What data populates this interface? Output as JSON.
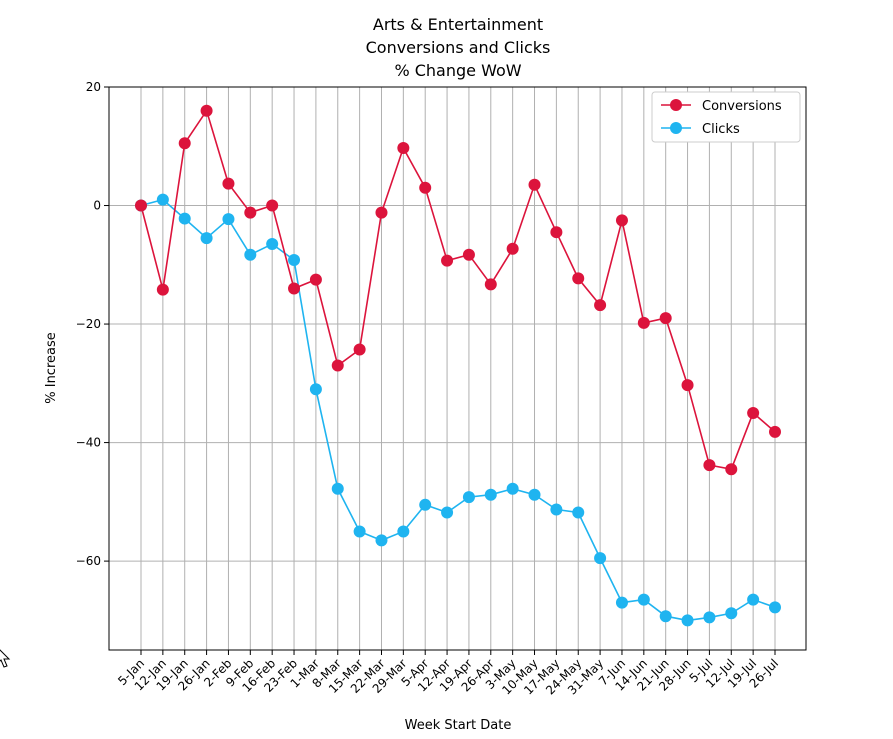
{
  "chart_data": {
    "type": "line",
    "title_lines": [
      "Arts & Entertainment",
      "Conversions and Clicks",
      "% Change WoW"
    ],
    "xlabel": "Week Start Date",
    "ylabel": "% Increase",
    "ylim": [
      -75,
      20
    ],
    "yticks": [
      20,
      0,
      -20,
      -40,
      -60
    ],
    "ytick_labels": [
      "20",
      "0",
      "−20",
      "−40",
      "−60"
    ],
    "grid": true,
    "legend_position": "top-right",
    "categories": [
      "5-Jan",
      "12-Jan",
      "19-Jan",
      "26-Jan",
      "2-Feb",
      "9-Feb",
      "16-Feb",
      "23-Feb",
      "1-Mar",
      "8-Mar",
      "15-Mar",
      "22-Mar",
      "29-Mar",
      "5-Apr",
      "12-Apr",
      "19-Apr",
      "26-Apr",
      "3-May",
      "10-May",
      "17-May",
      "24-May",
      "31-May",
      "7-Jun",
      "14-Jun",
      "21-Jun",
      "28-Jun",
      "5-Jul",
      "12-Jul",
      "19-Jul",
      "26-Jul"
    ],
    "series": [
      {
        "name": "Conversions",
        "color": "#dc143c",
        "values": [
          0,
          -14.2,
          10.5,
          16,
          3.7,
          -1.2,
          0,
          -14,
          -12.5,
          -27,
          -24.3,
          -1.2,
          9.7,
          3,
          -9.3,
          -8.3,
          -13.3,
          -7.3,
          3.5,
          -4.5,
          -12.3,
          -16.8,
          -2.5,
          -19.8,
          -19,
          -30.3,
          -43.8,
          -44.5,
          -35,
          -38.2
        ]
      },
      {
        "name": "Clicks",
        "color": "#1fb4f0",
        "values": [
          0,
          1,
          -2.2,
          -5.5,
          -2.3,
          -8.3,
          -6.5,
          -9.2,
          -31,
          -47.8,
          -55,
          -56.5,
          -55,
          -50.5,
          -51.8,
          -49.2,
          -48.8,
          -47.8,
          -48.8,
          -51.3,
          -51.8,
          -59.5,
          -67,
          -66.5,
          -69.3,
          -70,
          -69.5,
          -68.8,
          -66.5,
          -67.8
        ]
      }
    ]
  }
}
